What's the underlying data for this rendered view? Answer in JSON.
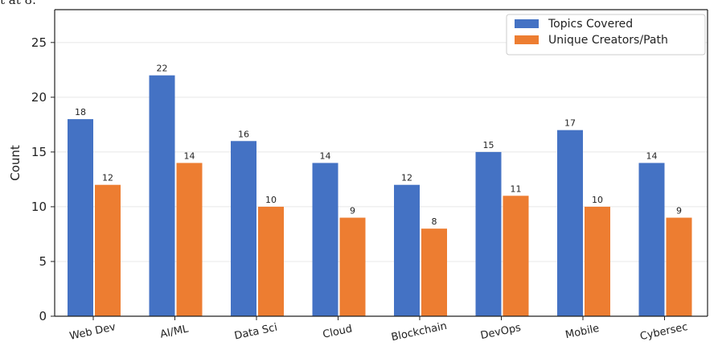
{
  "caption_fragment": "t at 8.",
  "colors": {
    "topics": "#4472c4",
    "creators": "#ed7d31",
    "grid": "#e8e8e8",
    "axis": "#222222",
    "text": "#222222"
  },
  "chart_data": {
    "type": "bar",
    "title": "",
    "xlabel": "",
    "ylabel": "Count",
    "ylim": [
      0,
      28
    ],
    "yticks": [
      0,
      5,
      10,
      15,
      20,
      25
    ],
    "grid": true,
    "legend_position": "top-right",
    "categories": [
      "Web Dev",
      "AI/ML",
      "Data Sci",
      "Cloud",
      "Blockchain",
      "DevOps",
      "Mobile",
      "Cybersec"
    ],
    "series": [
      {
        "name": "Topics Covered",
        "color": "#4472c4",
        "values": [
          18,
          22,
          16,
          14,
          12,
          15,
          17,
          14
        ]
      },
      {
        "name": "Unique Creators/Path",
        "color": "#ed7d31",
        "values": [
          12,
          14,
          10,
          9,
          8,
          11,
          10,
          9
        ]
      }
    ]
  }
}
